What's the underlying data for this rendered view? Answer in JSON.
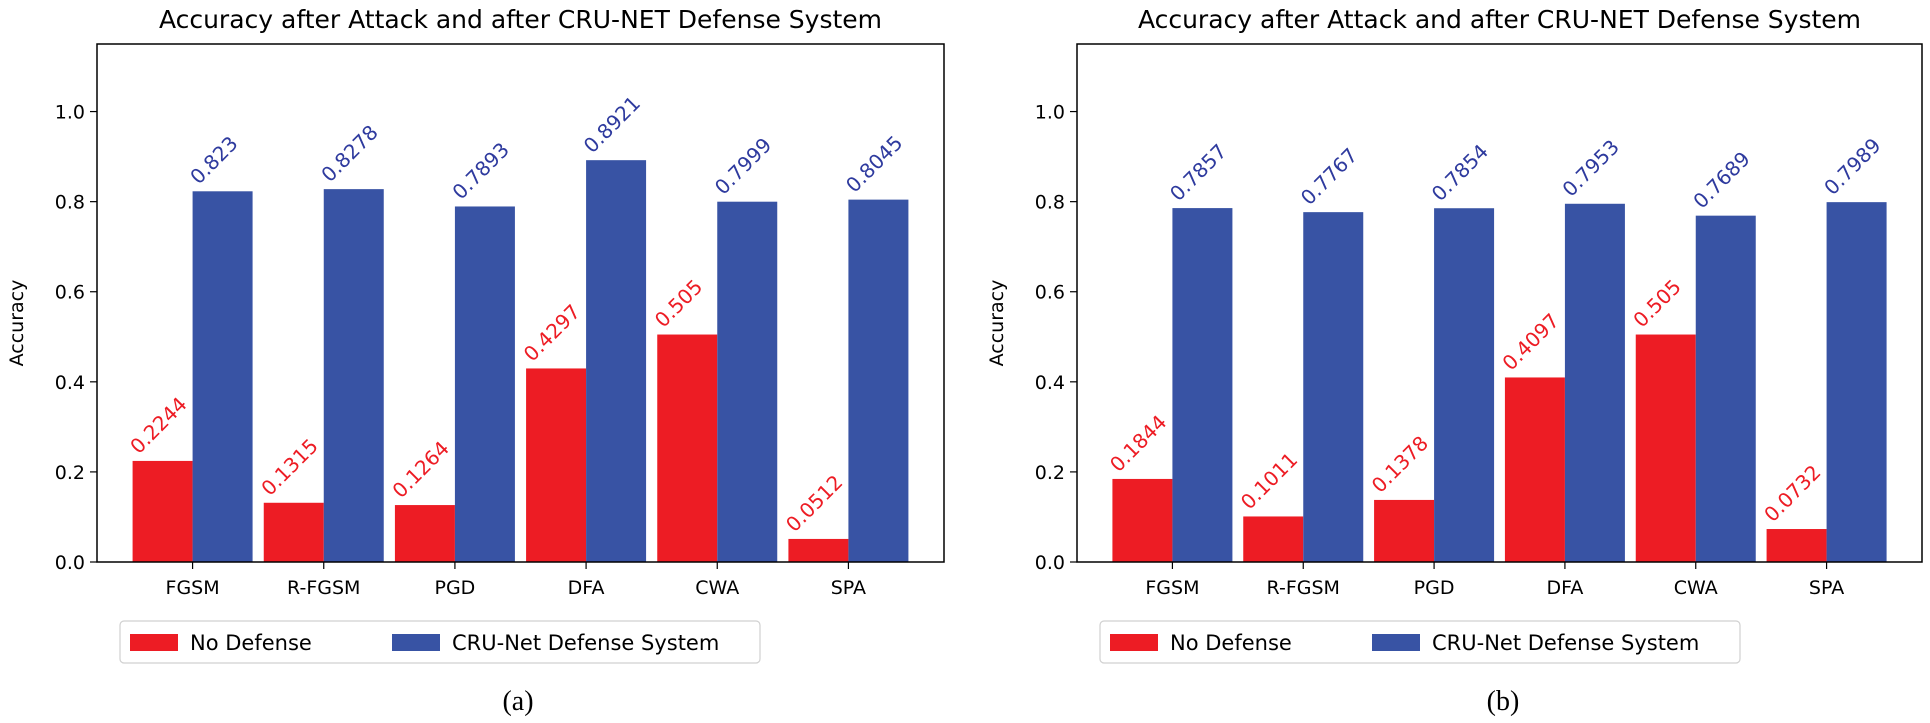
{
  "colors": {
    "no_defense": "#ed1c24",
    "cru_net": "#3853a4",
    "no_defense_label": "#ed1c24",
    "cru_net_label": "#2e3a9e"
  },
  "chart_data": [
    {
      "type": "bar",
      "panel_label": "(a)",
      "title": "Accuracy after Attack and after CRU-NET Defense System",
      "xlabel": "",
      "ylabel": "Accuracy",
      "ylim": [
        0,
        1.15
      ],
      "yticks": [
        "0.0",
        "0.2",
        "0.4",
        "0.6",
        "0.8",
        "1.0"
      ],
      "categories": [
        "FGSM",
        "R-FGSM",
        "PGD",
        "DFA",
        "CWA",
        "SPA"
      ],
      "series": [
        {
          "name": "No Defense",
          "values": [
            0.2244,
            0.1315,
            0.1264,
            0.4297,
            0.505,
            0.0512
          ],
          "labels": [
            "0.2244",
            "0.1315",
            "0.1264",
            "0.4297",
            "0.505",
            "0.0512"
          ]
        },
        {
          "name": "CRU-Net Defense System",
          "values": [
            0.823,
            0.8278,
            0.7893,
            0.8921,
            0.7999,
            0.8045
          ],
          "labels": [
            "0.823",
            "0.8278",
            "0.7893",
            "0.8921",
            "0.7999",
            "0.8045"
          ]
        }
      ],
      "legend": "bottom"
    },
    {
      "type": "bar",
      "panel_label": "(b)",
      "title": "Accuracy after Attack and after CRU-NET Defense System",
      "xlabel": "",
      "ylabel": "Accuracy",
      "ylim": [
        0,
        1.15
      ],
      "yticks": [
        "0.0",
        "0.2",
        "0.4",
        "0.6",
        "0.8",
        "1.0"
      ],
      "categories": [
        "FGSM",
        "R-FGSM",
        "PGD",
        "DFA",
        "CWA",
        "SPA"
      ],
      "series": [
        {
          "name": "No Defense",
          "values": [
            0.1844,
            0.1011,
            0.1378,
            0.4097,
            0.505,
            0.0732
          ],
          "labels": [
            "0.1844",
            "0.1011",
            "0.1378",
            "0.4097",
            "0.505",
            "0.0732"
          ]
        },
        {
          "name": "CRU-Net Defense System",
          "values": [
            0.7857,
            0.7767,
            0.7854,
            0.7953,
            0.7689,
            0.7989
          ],
          "labels": [
            "0.7857",
            "0.7767",
            "0.7854",
            "0.7953",
            "0.7689",
            "0.7989"
          ]
        }
      ],
      "legend": "bottom"
    }
  ]
}
